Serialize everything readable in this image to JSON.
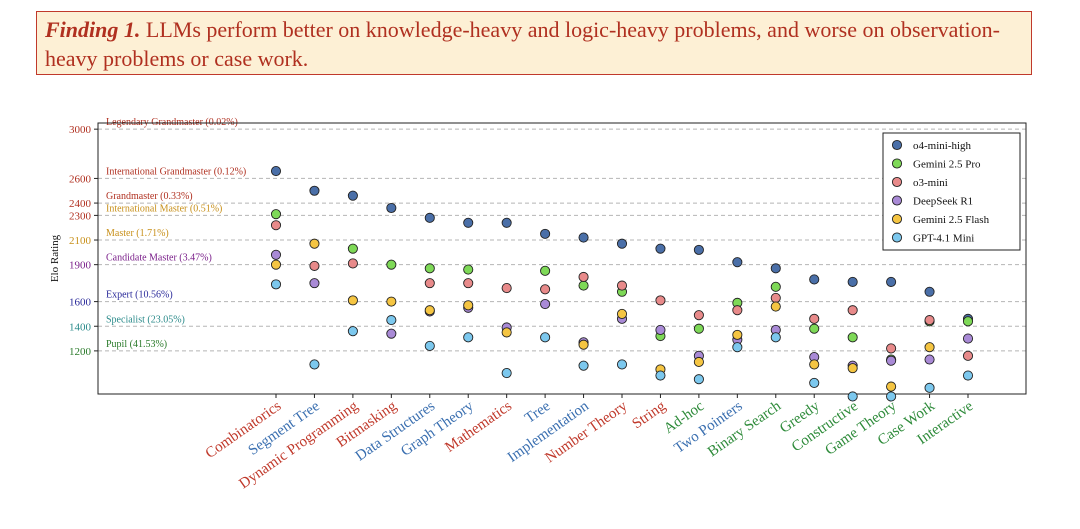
{
  "finding": {
    "lead": "Finding 1.",
    "text": "LLMs perform better on knowledge-heavy and logic-heavy problems, and worse on observation-heavy problems or case work."
  },
  "chart_data": {
    "type": "scatter",
    "ylabel": "Elo Rating",
    "yticks": [
      3000,
      2600,
      2400,
      2300,
      2100,
      1900,
      1600,
      1400,
      1200
    ],
    "ytick_colors": [
      "#b03020",
      "#b03020",
      "#b03020",
      "#b03020",
      "#c8901a",
      "#7a1f8a",
      "#2a2a9a",
      "#2a8a8a",
      "#2a7a2a"
    ],
    "ylim": [
      850,
      3050
    ],
    "grid": "horizontal dashed",
    "legend_position": "top-right",
    "rank_lines": [
      {
        "label": "Legendary Grandmaster (0.02%)",
        "value": 3000,
        "color": "#b03020"
      },
      {
        "label": "International Grandmaster (0.12%)",
        "value": 2600,
        "color": "#b03020"
      },
      {
        "label": "Grandmaster (0.33%)",
        "value": 2400,
        "color": "#b03020"
      },
      {
        "label": "International Master (0.51%)",
        "value": 2300,
        "color": "#c8901a"
      },
      {
        "label": "Master (1.71%)",
        "value": 2100,
        "color": "#c8901a"
      },
      {
        "label": "Candidate Master (3.47%)",
        "value": 1900,
        "color": "#7a1f8a"
      },
      {
        "label": "Expert (10.56%)",
        "value": 1600,
        "color": "#2a2a9a"
      },
      {
        "label": "Specialist (23.05%)",
        "value": 1400,
        "color": "#2a8a8a"
      },
      {
        "label": "Pupil (41.53%)",
        "value": 1200,
        "color": "#2a7a2a"
      }
    ],
    "categories": [
      "Combinatorics",
      "Segment Tree",
      "Dynamic Programming",
      "Bitmasking",
      "Data Structures",
      "Graph Theory",
      "Mathematics",
      "Tree",
      "Implementation",
      "Number Theory",
      "String",
      "Ad-hoc",
      "Two Pointers",
      "Binary Search",
      "Greedy",
      "Constructive",
      "Game Theory",
      "Case Work",
      "Interactive"
    ],
    "category_colors": [
      "#c0392b",
      "#3a6fb0",
      "#c0392b",
      "#c0392b",
      "#3a6fb0",
      "#3a6fb0",
      "#c0392b",
      "#3a6fb0",
      "#3a6fb0",
      "#c0392b",
      "#c0392b",
      "#2e8b3a",
      "#3a6fb0",
      "#2e8b3a",
      "#2e8b3a",
      "#2e8b3a",
      "#2e8b3a",
      "#2e8b3a",
      "#2e8b3a"
    ],
    "series": [
      {
        "name": "o4-mini-high",
        "color": "#4a6fa8",
        "values": [
          2660,
          2500,
          2460,
          2360,
          2280,
          2240,
          2240,
          2150,
          2120,
          2070,
          2030,
          2020,
          1920,
          1870,
          1780,
          1760,
          1760,
          1680,
          1460
        ]
      },
      {
        "name": "Gemini 2.5 Pro",
        "color": "#7ed957",
        "values": [
          2310,
          null,
          2030,
          1900,
          1870,
          1860,
          null,
          1850,
          1730,
          1680,
          1320,
          1380,
          1590,
          1720,
          1380,
          1310,
          1130,
          1440,
          1440
        ]
      },
      {
        "name": "o3-mini",
        "color": "#e88a8a",
        "values": [
          2220,
          1890,
          1910,
          null,
          1750,
          1750,
          1710,
          1700,
          1800,
          1730,
          1610,
          1490,
          1530,
          1630,
          1460,
          1530,
          1220,
          1450,
          1160
        ]
      },
      {
        "name": "DeepSeek R1",
        "color": "#a98ad6",
        "values": [
          1980,
          1750,
          null,
          1340,
          1520,
          1550,
          1390,
          1580,
          1270,
          1460,
          1370,
          1160,
          1290,
          1370,
          1150,
          1080,
          1120,
          1130,
          1300
        ]
      },
      {
        "name": "Gemini 2.5 Flash",
        "color": "#f5c542",
        "values": [
          1900,
          2070,
          1610,
          1600,
          1530,
          1570,
          1350,
          null,
          1250,
          1500,
          1050,
          1110,
          1330,
          1560,
          1090,
          1060,
          910,
          1230,
          null
        ]
      },
      {
        "name": "GPT-4.1 Mini",
        "color": "#7cc8ee",
        "values": [
          1740,
          1090,
          1360,
          1450,
          1240,
          1310,
          1020,
          1310,
          1080,
          1090,
          1000,
          970,
          1230,
          1310,
          940,
          830,
          830,
          900,
          1000
        ]
      }
    ]
  }
}
